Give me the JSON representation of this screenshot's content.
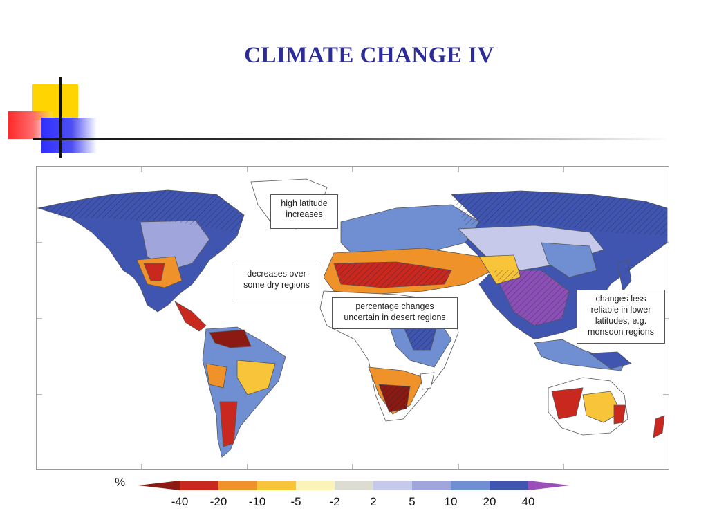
{
  "slide": {
    "title": "CLIMATE CHANGE IV"
  },
  "map": {
    "annotations": {
      "high_latitude": [
        "high latitude",
        "increases"
      ],
      "dry_regions": [
        "decreases over",
        "some dry regions"
      ],
      "desert_regions": [
        "percentage changes",
        "uncertain in desert regions"
      ],
      "monsoon": [
        "changes less",
        "reliable in lower",
        "latitudes, e.g.",
        "monsoon regions"
      ]
    }
  },
  "legend": {
    "unit": "%",
    "ticks": [
      "-40",
      "-20",
      "-10",
      "-5",
      "-2",
      "2",
      "5",
      "10",
      "20",
      "40"
    ],
    "colors": [
      "#8a1a12",
      "#c8281e",
      "#f0922a",
      "#f7c43a",
      "#fbf3b8",
      "#dcdcd2",
      "#c7c9ea",
      "#a0a6dc",
      "#6f8fd2",
      "#3f55b0",
      "#9a4fb8"
    ]
  }
}
